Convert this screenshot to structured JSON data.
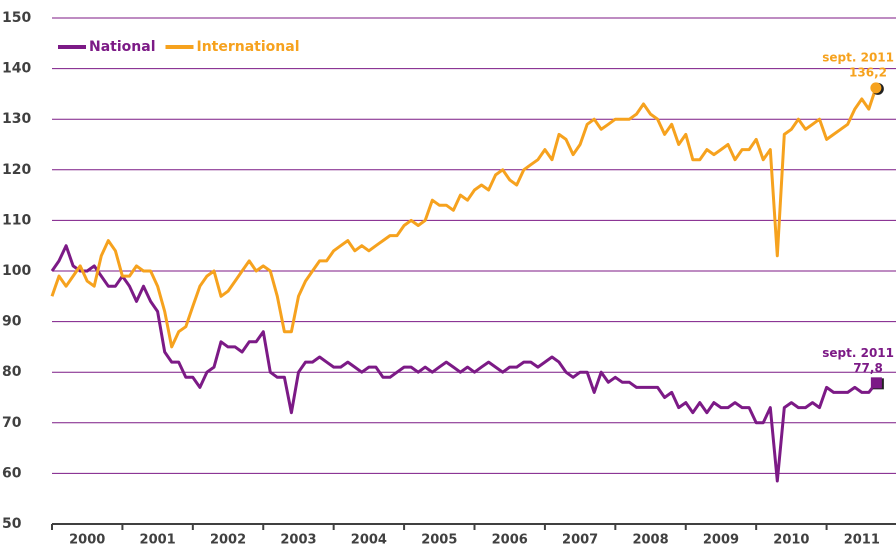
{
  "chart_data": {
    "type": "line",
    "legend": "top-left",
    "grid": true,
    "ylim": [
      50,
      150
    ],
    "yticks": [
      50,
      60,
      70,
      80,
      90,
      100,
      110,
      120,
      130,
      140,
      150
    ],
    "xlim": [
      2000,
      2012
    ],
    "xticks": [
      {
        "value": 2000.5,
        "label": "2000"
      },
      {
        "value": 2001.5,
        "label": "2001"
      },
      {
        "value": 2002.5,
        "label": "2002"
      },
      {
        "value": 2003.5,
        "label": "2003"
      },
      {
        "value": 2004.5,
        "label": "2004"
      },
      {
        "value": 2005.5,
        "label": "2005"
      },
      {
        "value": 2006.5,
        "label": "2006"
      },
      {
        "value": 2007.5,
        "label": "2007"
      },
      {
        "value": 2008.5,
        "label": "2008"
      },
      {
        "value": 2009.5,
        "label": "2009"
      },
      {
        "value": 2010.5,
        "label": "2010"
      },
      {
        "value": 2011.5,
        "label": "2011"
      }
    ],
    "x": [
      2000.0,
      2000.1,
      2000.2,
      2000.3,
      2000.4,
      2000.5,
      2000.6,
      2000.7,
      2000.8,
      2000.9,
      2001.0,
      2001.1,
      2001.2,
      2001.3,
      2001.4,
      2001.5,
      2001.6,
      2001.7,
      2001.8,
      2001.9,
      2002.0,
      2002.1,
      2002.2,
      2002.3,
      2002.4,
      2002.5,
      2002.6,
      2002.7,
      2002.8,
      2002.9,
      2003.0,
      2003.1,
      2003.2,
      2003.3,
      2003.4,
      2003.5,
      2003.6,
      2003.7,
      2003.8,
      2003.9,
      2004.0,
      2004.1,
      2004.2,
      2004.3,
      2004.4,
      2004.5,
      2004.6,
      2004.7,
      2004.8,
      2004.9,
      2005.0,
      2005.1,
      2005.2,
      2005.3,
      2005.4,
      2005.5,
      2005.6,
      2005.7,
      2005.8,
      2005.9,
      2006.0,
      2006.1,
      2006.2,
      2006.3,
      2006.4,
      2006.5,
      2006.6,
      2006.7,
      2006.8,
      2006.9,
      2007.0,
      2007.1,
      2007.2,
      2007.3,
      2007.4,
      2007.5,
      2007.6,
      2007.7,
      2007.8,
      2007.9,
      2008.0,
      2008.1,
      2008.2,
      2008.3,
      2008.4,
      2008.5,
      2008.6,
      2008.7,
      2008.8,
      2008.9,
      2009.0,
      2009.1,
      2009.2,
      2009.3,
      2009.4,
      2009.5,
      2009.6,
      2009.7,
      2009.8,
      2009.9,
      2010.0,
      2010.1,
      2010.2,
      2010.3,
      2010.4,
      2010.5,
      2010.6,
      2010.7,
      2010.8,
      2010.9,
      2011.0,
      2011.1,
      2011.2,
      2011.3,
      2011.4,
      2011.5,
      2011.6,
      2011.7
    ],
    "series": [
      {
        "name": "National",
        "color": "#7c1a86",
        "marker": "square",
        "values": [
          100,
          102,
          105,
          101,
          100,
          100,
          101,
          99,
          97,
          97,
          99,
          97,
          94,
          97,
          94,
          92,
          84,
          82,
          82,
          79,
          79,
          77,
          80,
          81,
          86,
          85,
          85,
          84,
          86,
          86,
          88,
          80,
          79,
          79,
          72,
          80,
          82,
          82,
          83,
          82,
          81,
          81,
          82,
          81,
          80,
          81,
          81,
          79,
          79,
          80,
          81,
          81,
          80,
          81,
          80,
          81,
          82,
          81,
          80,
          81,
          80,
          81,
          82,
          81,
          80,
          81,
          81,
          82,
          82,
          81,
          82,
          83,
          82,
          80,
          79,
          80,
          80,
          76,
          80,
          78,
          79,
          78,
          78,
          77,
          77,
          77,
          77,
          75,
          76,
          73,
          74,
          72,
          74,
          72,
          74,
          73,
          73,
          74,
          73,
          73,
          70,
          70,
          73,
          58.5,
          73,
          74,
          73,
          73,
          74,
          73,
          77,
          76,
          76,
          76,
          77,
          76,
          76,
          77.8
        ]
      },
      {
        "name": "International",
        "color": "#f6a21e",
        "marker": "circle",
        "values": [
          95,
          99,
          97,
          99,
          101,
          98,
          97,
          103,
          106,
          104,
          99,
          99,
          101,
          100,
          100,
          97,
          92,
          85,
          88,
          89,
          93,
          97,
          99,
          100,
          95,
          96,
          98,
          100,
          102,
          100,
          101,
          100,
          95,
          88,
          88,
          95,
          98,
          100,
          102,
          102,
          104,
          105,
          106,
          104,
          105,
          104,
          105,
          106,
          107,
          107,
          109,
          110,
          109,
          110,
          114,
          113,
          113,
          112,
          115,
          114,
          116,
          117,
          116,
          119,
          120,
          118,
          117,
          120,
          121,
          122,
          124,
          122,
          127,
          126,
          123,
          125,
          129,
          130,
          128,
          129,
          130,
          130,
          130,
          131,
          133,
          131,
          130,
          127,
          129,
          125,
          127,
          122,
          122,
          124,
          123,
          124,
          125,
          122,
          124,
          124,
          126,
          122,
          124,
          103,
          127,
          128,
          130,
          128,
          129,
          130,
          126,
          127,
          128,
          129,
          132,
          134,
          132,
          136.2
        ]
      }
    ],
    "annotations": [
      {
        "series": 1,
        "date": "sept. 2011",
        "value_label": "136,2"
      },
      {
        "series": 0,
        "date": "sept. 2011",
        "value_label": "77,8"
      }
    ]
  }
}
